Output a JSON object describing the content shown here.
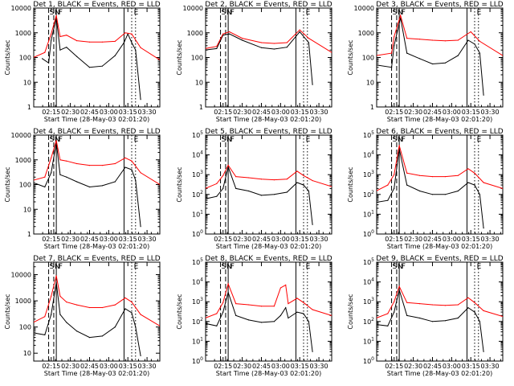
{
  "figure": {
    "x_label": "Start Time (28-May-03 02:01:20)",
    "y_label": "Counts/sec",
    "x_ticks": [
      "02:15",
      "02:30",
      "02:45",
      "03:00",
      "03:15",
      "03:30"
    ],
    "flags": [
      "S",
      "N",
      "F",
      "E"
    ],
    "colors": {
      "events": "#000000",
      "lld": "#ff0000",
      "axes": "#000000"
    }
  },
  "chart_data": [
    {
      "type": "line",
      "title": "Det 1, BLACK = Events, RED = LLD",
      "y_tick_style": "plain",
      "y_ticks": [
        "1",
        "10",
        "100",
        "1000",
        "10000"
      ],
      "ylim": [
        1,
        10000
      ],
      "log_y": true,
      "x_range": [
        "02:01:20",
        "03:40:00"
      ],
      "series": [
        {
          "name": "BLACK = Events",
          "x": [
            "02:08",
            "02:13",
            "02:15",
            "02:19",
            "02:22",
            "02:27",
            "02:35",
            "02:45",
            "02:55",
            "03:05",
            "03:12",
            "03:15",
            "03:18",
            "03:21",
            "03:25"
          ],
          "y": [
            90,
            60,
            500,
            4000,
            200,
            260,
            110,
            40,
            45,
            120,
            400,
            900,
            400,
            200,
            2
          ]
        },
        {
          "name": "RED = LLD",
          "x": [
            "02:01",
            "02:10",
            "02:15",
            "02:19",
            "02:22",
            "02:27",
            "02:35",
            "02:45",
            "02:55",
            "03:05",
            "03:13",
            "03:18",
            "03:25",
            "03:40"
          ],
          "y": [
            100,
            160,
            900,
            5000,
            700,
            800,
            480,
            420,
            420,
            450,
            1000,
            900,
            250,
            80
          ]
        }
      ]
    },
    {
      "type": "line",
      "title": "Det 2, BLACK = Events, RED = LLD",
      "y_tick_style": "plain",
      "y_ticks": [
        "1",
        "10",
        "100",
        "1000",
        "10000"
      ],
      "ylim": [
        1,
        10000
      ],
      "log_y": true,
      "x_range": [
        "02:01:20",
        "03:40:00"
      ],
      "series": [
        {
          "name": "BLACK = Events",
          "x": [
            "02:01",
            "02:10",
            "02:15",
            "02:20",
            "02:30",
            "02:45",
            "02:55",
            "03:05",
            "03:15",
            "03:22",
            "03:25"
          ],
          "y": [
            200,
            230,
            800,
            900,
            500,
            250,
            220,
            260,
            1100,
            400,
            8
          ]
        },
        {
          "name": "RED = LLD",
          "x": [
            "02:01",
            "02:10",
            "02:15",
            "02:20",
            "02:30",
            "02:45",
            "02:55",
            "03:05",
            "03:15",
            "03:22",
            "03:40"
          ],
          "y": [
            230,
            280,
            900,
            1100,
            600,
            400,
            370,
            400,
            1300,
            600,
            160
          ]
        }
      ]
    },
    {
      "type": "line",
      "title": "Det 3, BLACK = Events, RED = LLD",
      "y_tick_style": "plain",
      "y_ticks": [
        "1",
        "10",
        "100",
        "1000",
        "10000"
      ],
      "ylim": [
        1,
        10000
      ],
      "log_y": true,
      "x_range": [
        "02:01:20",
        "03:40:00"
      ],
      "series": [
        {
          "name": "BLACK = Events",
          "x": [
            "02:01",
            "02:13",
            "02:15",
            "02:20",
            "02:25",
            "02:35",
            "02:45",
            "02:55",
            "03:05",
            "03:13",
            "03:18",
            "03:22",
            "03:25"
          ],
          "y": [
            50,
            40,
            300,
            4000,
            150,
            90,
            55,
            60,
            120,
            500,
            350,
            150,
            3
          ]
        },
        {
          "name": "RED = LLD",
          "x": [
            "02:01",
            "02:13",
            "02:15",
            "02:20",
            "02:25",
            "02:35",
            "02:45",
            "02:55",
            "03:05",
            "03:15",
            "03:22",
            "03:40"
          ],
          "y": [
            120,
            150,
            700,
            5000,
            600,
            550,
            500,
            470,
            500,
            1100,
            450,
            120
          ]
        }
      ]
    },
    {
      "type": "line",
      "title": "Det 4, BLACK = Events, RED = LLD",
      "y_tick_style": "plain",
      "y_ticks": [
        "1",
        "10",
        "100",
        "1000",
        "10000"
      ],
      "ylim": [
        1,
        10000
      ],
      "log_y": true,
      "x_range": [
        "02:01:20",
        "03:40:00"
      ],
      "series": [
        {
          "name": "BLACK = Events",
          "x": [
            "02:01",
            "02:10",
            "02:15",
            "02:19",
            "02:22",
            "02:27",
            "02:35",
            "02:45",
            "02:55",
            "03:05",
            "03:13",
            "03:18",
            "03:21",
            "03:25"
          ],
          "y": [
            120,
            80,
            300,
            5000,
            250,
            200,
            130,
            80,
            90,
            130,
            500,
            400,
            150,
            2
          ]
        },
        {
          "name": "RED = LLD",
          "x": [
            "02:01",
            "02:10",
            "02:15",
            "02:19",
            "02:22",
            "02:27",
            "02:35",
            "02:45",
            "02:55",
            "03:05",
            "03:13",
            "03:18",
            "03:25",
            "03:40"
          ],
          "y": [
            150,
            200,
            1200,
            6000,
            1000,
            900,
            700,
            600,
            600,
            700,
            1200,
            900,
            300,
            100
          ]
        }
      ]
    },
    {
      "type": "line",
      "title": "Det 5, BLACK = Events, RED = LLD",
      "y_tick_style": "power",
      "y_ticks": [
        "10^0",
        "10^1",
        "10^2",
        "10^3",
        "10^4",
        "10^5"
      ],
      "ylim": [
        1,
        100000
      ],
      "log_y": true,
      "x_range": [
        "02:01:20",
        "03:40:00"
      ],
      "series": [
        {
          "name": "BLACK = Events",
          "x": [
            "02:01",
            "02:10",
            "02:15",
            "02:19",
            "02:25",
            "02:35",
            "02:45",
            "02:55",
            "03:05",
            "03:13",
            "03:18",
            "03:22",
            "03:25"
          ],
          "y": [
            60,
            80,
            200,
            2500,
            200,
            150,
            90,
            100,
            130,
            400,
            300,
            150,
            3
          ]
        },
        {
          "name": "RED = LLD",
          "x": [
            "02:01",
            "02:10",
            "02:15",
            "02:19",
            "02:25",
            "02:35",
            "02:45",
            "02:55",
            "03:05",
            "03:13",
            "03:18",
            "03:25",
            "03:40"
          ],
          "y": [
            200,
            350,
            900,
            3000,
            800,
            700,
            600,
            550,
            600,
            1500,
            900,
            500,
            250
          ]
        }
      ]
    },
    {
      "type": "line",
      "title": "Det 6, BLACK = Events, RED = LLD",
      "y_tick_style": "power",
      "y_ticks": [
        "10^0",
        "10^1",
        "10^2",
        "10^3",
        "10^4",
        "10^5"
      ],
      "ylim": [
        1,
        100000
      ],
      "log_y": true,
      "x_range": [
        "02:01:20",
        "03:40:00"
      ],
      "series": [
        {
          "name": "BLACK = Events",
          "x": [
            "02:01",
            "02:10",
            "02:15",
            "02:19",
            "02:25",
            "02:35",
            "02:45",
            "02:55",
            "03:05",
            "03:13",
            "03:18",
            "03:22",
            "03:25"
          ],
          "y": [
            40,
            50,
            200,
            20000,
            300,
            150,
            100,
            100,
            150,
            400,
            300,
            100,
            2
          ]
        },
        {
          "name": "RED = LLD",
          "x": [
            "02:01",
            "02:10",
            "02:15",
            "02:19",
            "02:25",
            "02:35",
            "02:45",
            "02:55",
            "03:05",
            "03:13",
            "03:18",
            "03:25",
            "03:40"
          ],
          "y": [
            150,
            300,
            1000,
            30000,
            1200,
            900,
            800,
            800,
            900,
            2000,
            1200,
            400,
            200
          ]
        }
      ]
    },
    {
      "type": "line",
      "title": "Det 7, BLACK = Events, RED = LLD",
      "y_tick_style": "plain",
      "y_ticks": [
        "10",
        "100",
        "1000",
        "10000"
      ],
      "ylim": [
        5,
        30000
      ],
      "log_y": true,
      "x_range": [
        "02:01:20",
        "03:40:00"
      ],
      "series": [
        {
          "name": "BLACK = Events",
          "x": [
            "02:01",
            "02:10",
            "02:15",
            "02:19",
            "02:22",
            "02:27",
            "02:35",
            "02:45",
            "02:55",
            "03:05",
            "03:13",
            "03:18",
            "03:21",
            "03:25"
          ],
          "y": [
            60,
            50,
            300,
            5000,
            300,
            150,
            70,
            40,
            45,
            100,
            500,
            350,
            100,
            8
          ]
        },
        {
          "name": "RED = LLD",
          "x": [
            "02:01",
            "02:10",
            "02:15",
            "02:19",
            "02:22",
            "02:27",
            "02:35",
            "02:45",
            "02:55",
            "03:05",
            "03:13",
            "03:18",
            "03:25",
            "03:40"
          ],
          "y": [
            150,
            250,
            1500,
            9000,
            1500,
            900,
            700,
            550,
            550,
            700,
            1300,
            900,
            300,
            110
          ]
        }
      ]
    },
    {
      "type": "line",
      "title": "Det 8, BLACK = Events, RED = LLD",
      "y_tick_style": "power",
      "y_ticks": [
        "10^0",
        "10^1",
        "10^2",
        "10^3",
        "10^4",
        "10^5"
      ],
      "ylim": [
        1,
        100000
      ],
      "log_y": true,
      "x_range": [
        "02:01:20",
        "03:40:00"
      ],
      "series": [
        {
          "name": "BLACK = Events",
          "x": [
            "02:01",
            "02:10",
            "02:15",
            "02:19",
            "02:25",
            "02:35",
            "02:45",
            "02:55",
            "03:00",
            "03:04",
            "03:06",
            "03:13",
            "03:18",
            "03:22",
            "03:25"
          ],
          "y": [
            80,
            60,
            300,
            3000,
            200,
            120,
            90,
            100,
            200,
            500,
            150,
            300,
            250,
            100,
            3
          ]
        },
        {
          "name": "RED = LLD",
          "x": [
            "02:01",
            "02:10",
            "02:15",
            "02:19",
            "02:25",
            "02:35",
            "02:45",
            "02:55",
            "03:00",
            "03:04",
            "03:06",
            "03:13",
            "03:18",
            "03:25",
            "03:40"
          ],
          "y": [
            150,
            250,
            900,
            8000,
            800,
            700,
            600,
            600,
            5000,
            7000,
            800,
            1500,
            900,
            400,
            200
          ]
        }
      ]
    },
    {
      "type": "line",
      "title": "Det 9, BLACK = Events, RED = LLD",
      "y_tick_style": "power",
      "y_ticks": [
        "10^0",
        "10^1",
        "10^2",
        "10^3",
        "10^4",
        "10^5"
      ],
      "ylim": [
        1,
        100000
      ],
      "log_y": true,
      "x_range": [
        "02:01:20",
        "03:40:00"
      ],
      "series": [
        {
          "name": "BLACK = Events",
          "x": [
            "02:01",
            "02:10",
            "02:15",
            "02:19",
            "02:25",
            "02:35",
            "02:45",
            "02:55",
            "03:05",
            "03:13",
            "03:18",
            "03:22",
            "03:25"
          ],
          "y": [
            70,
            60,
            300,
            4000,
            200,
            150,
            100,
            110,
            150,
            500,
            300,
            100,
            3
          ]
        },
        {
          "name": "RED = LLD",
          "x": [
            "02:01",
            "02:10",
            "02:15",
            "02:19",
            "02:25",
            "02:35",
            "02:45",
            "02:55",
            "03:05",
            "03:13",
            "03:18",
            "03:25",
            "03:40"
          ],
          "y": [
            150,
            250,
            1000,
            6000,
            900,
            800,
            700,
            650,
            700,
            1600,
            900,
            350,
            180
          ]
        }
      ]
    }
  ]
}
